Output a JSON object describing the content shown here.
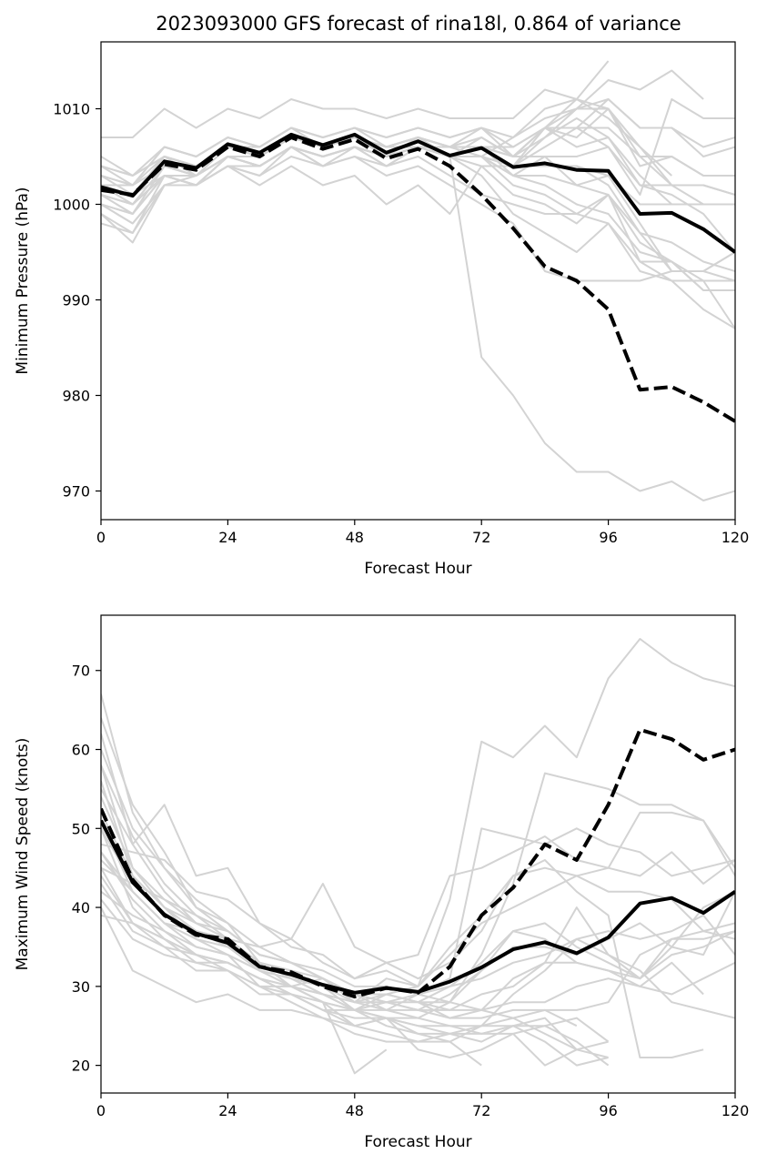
{
  "figure": {
    "title": "2023093000 GFS forecast of rina18l, 0.864 of variance"
  },
  "colors": {
    "ensemble": "#d3d3d3",
    "main": "#000000"
  },
  "chart_data": [
    {
      "type": "line",
      "title": "2023093000 GFS forecast of rina18l, 0.864 of variance",
      "xlabel": "Forecast Hour",
      "ylabel": "Minimum Pressure (hPa)",
      "xlim": [
        0,
        120
      ],
      "ylim": [
        967,
        1017
      ],
      "xticks": [
        0,
        24,
        48,
        72,
        96,
        120
      ],
      "yticks": [
        970,
        980,
        990,
        1000,
        1010
      ],
      "grid": false,
      "x": [
        0,
        6,
        12,
        18,
        24,
        30,
        36,
        42,
        48,
        54,
        60,
        66,
        72,
        78,
        84,
        90,
        96,
        102,
        108,
        114,
        120
      ],
      "series": [
        {
          "style": "solid",
          "values": [
            1001.8,
            1000.9,
            1004.5,
            1003.8,
            1006.3,
            1005.4,
            1007.3,
            1006.2,
            1007.3,
            1005.4,
            1006.6,
            1005.1,
            1005.9,
            1003.9,
            1004.3,
            1003.6,
            1003.5,
            999.0,
            999.1,
            997.4,
            995.0
          ]
        },
        {
          "style": "dashed",
          "values": [
            1001.5,
            1001.0,
            1004.2,
            1003.6,
            1006.0,
            1005.0,
            1007.0,
            1005.8,
            1006.8,
            1004.8,
            1005.8,
            1004.0,
            1001.0,
            997.5,
            993.5,
            992.0,
            989.0,
            980.6,
            980.9,
            979.3,
            977.3
          ]
        }
      ],
      "ensemble": [
        [
          1003,
          1001,
          1005,
          1003,
          1006,
          1005,
          1007,
          1006,
          1007,
          1005,
          1007,
          1005,
          1006,
          1004,
          1007,
          1010,
          1011,
          1008,
          1008,
          1005,
          1006
        ],
        [
          1005,
          1003,
          1005,
          1004,
          1006,
          1006,
          1008,
          1007,
          1008,
          1006,
          1007,
          1006,
          1007,
          1005,
          1008,
          1011,
          1015
        ],
        [
          1000,
          999,
          1004,
          1004,
          1006,
          1005,
          1007,
          1006,
          1007,
          1006,
          1006,
          1006,
          1005,
          1007,
          1009,
          1010,
          1013,
          1012,
          1014,
          1011
        ],
        [
          1002,
          1001,
          1003,
          1003,
          1005,
          1004,
          1006,
          1005,
          1006,
          1005,
          1006,
          1005,
          1006,
          1006,
          1008,
          1010,
          1010,
          1004,
          1005,
          1003
        ],
        [
          1004,
          1003,
          1006,
          1005,
          1007,
          1006,
          1008,
          1007,
          1008,
          1007,
          1008,
          1007,
          1008,
          1007,
          1010,
          1011,
          1010,
          1006,
          1002,
          1002,
          1001
        ],
        [
          999,
          997,
          1003,
          1002,
          1005,
          1004,
          1006,
          1005,
          1006,
          1005,
          1006,
          1005,
          1006,
          1005,
          1008,
          1008,
          1011,
          1008,
          1008,
          1006,
          1007
        ],
        [
          1001,
          999,
          1003,
          1002,
          1005,
          1004,
          1006,
          1005,
          1006,
          1004,
          1006,
          1005,
          1007,
          1005,
          1007,
          1009,
          1007,
          1003,
          1000,
          1000,
          1000
        ],
        [
          1000,
          998,
          1002,
          1003,
          1005,
          1005,
          1007,
          1006,
          1007,
          1006,
          1007,
          1006,
          1006,
          1004,
          1006,
          1008,
          1006,
          1001,
          1011,
          1009,
          1009
        ],
        [
          1002,
          1002,
          1006,
          1005,
          1007,
          1006,
          1008,
          1006,
          1007,
          1006,
          1007,
          1006,
          1006,
          1003,
          1003,
          1002,
          1003,
          1000,
          1000,
          1000,
          1000
        ],
        [
          1004,
          1003,
          1005,
          1004,
          1006,
          1005,
          1007,
          1006,
          1007,
          1006,
          1007,
          1006,
          1008,
          1005,
          1005,
          1005,
          1006,
          1002,
          1001,
          999,
          995
        ],
        [
          1001,
          1000,
          1003,
          1003,
          1005,
          1004,
          1006,
          1005,
          1006,
          1005,
          1006,
          1005,
          1005,
          1002,
          1001,
          999,
          1001,
          996,
          994,
          992,
          987
        ],
        [
          998,
          997,
          1002,
          1002,
          1004,
          1004,
          1006,
          1005,
          1006,
          1005,
          1006,
          1005,
          1005,
          1003,
          1002,
          1000,
          999,
          995,
          994,
          991,
          991
        ],
        [
          1000,
          999,
          1003,
          1002,
          1005,
          1004,
          1006,
          1005,
          1006,
          1005,
          1006,
          1005,
          1004,
          1001,
          1000,
          998,
          1001,
          997,
          993,
          993,
          995
        ],
        [
          1000,
          998,
          1002,
          1002,
          1005,
          1004,
          1006,
          1005,
          1006,
          1005,
          1006,
          1005,
          1003,
          999,
          997,
          995,
          998,
          994,
          992,
          989,
          987
        ],
        [
          1003,
          1002,
          1005,
          1004,
          1006,
          1005,
          1007,
          1006,
          1007,
          1005,
          1006,
          1005,
          1005,
          1004,
          1004,
          1004,
          1003,
          998,
          993,
          993,
          992
        ],
        [
          1001,
          999,
          1004,
          1003,
          1005,
          1005,
          1007,
          1006,
          1007,
          1006,
          1007,
          1006,
          1005,
          1003,
          1005,
          1002,
          1001,
          994,
          994,
          991,
          991
        ],
        [
          1002,
          1000,
          1004,
          1003,
          1005,
          1004,
          1006,
          1004,
          1005,
          1003,
          1004,
          1002,
          1000,
          998,
          993,
          992,
          992,
          992,
          993,
          993,
          995
        ],
        [
          1004,
          1002,
          1006,
          1005,
          1007,
          1006,
          1008,
          1007,
          1008,
          1007,
          1008,
          1007,
          1008,
          1006,
          1008,
          1008,
          1008,
          1005,
          1005,
          1003,
          1003
        ],
        [
          1007,
          1007,
          1010,
          1008,
          1010,
          1009,
          1011,
          1010,
          1010,
          1009,
          1010,
          1009,
          1009,
          1009,
          1012,
          1011,
          1009,
          1006,
          1003
        ],
        [
          1002,
          1000,
          1003,
          1002,
          1004,
          1003,
          1005,
          1004,
          1005,
          1004,
          1005,
          1003,
          1001,
          1000,
          999,
          999,
          998,
          993,
          992,
          992,
          992
        ],
        [
          999,
          996,
          1002,
          1002,
          1004,
          1003,
          1006,
          1005,
          1006,
          1005,
          1006,
          1005,
          1005,
          1004,
          1004,
          1004,
          1002,
          997,
          996,
          994,
          993
        ],
        [
          1001,
          1000,
          1004,
          1003,
          1005,
          1004,
          1006,
          1005,
          1006,
          1005,
          1006,
          1005,
          984,
          980,
          975,
          972,
          972,
          970,
          971,
          969,
          970
        ],
        [
          1003,
          1002,
          1004,
          1003,
          1005,
          1004,
          1006,
          1004,
          1006,
          1004,
          1006,
          1005,
          1006,
          1005,
          1008,
          1007,
          1010,
          1005,
          1002,
          1000
        ],
        [
          1001,
          1000,
          1003,
          1002,
          1004,
          1002,
          1004,
          1002,
          1003,
          1000,
          1002,
          999,
          1004,
          1004,
          1008,
          1006,
          1007,
          1002,
          1002,
          1002,
          1001
        ]
      ]
    },
    {
      "type": "line",
      "title": "",
      "xlabel": "Forecast Hour",
      "ylabel": "Maximum Wind Speed (knots)",
      "xlim": [
        0,
        120
      ],
      "ylim": [
        16.5,
        77
      ],
      "xticks": [
        0,
        24,
        48,
        72,
        96,
        120
      ],
      "yticks": [
        20,
        30,
        40,
        50,
        60,
        70
      ],
      "grid": false,
      "x": [
        0,
        6,
        12,
        18,
        24,
        30,
        36,
        42,
        48,
        54,
        60,
        66,
        72,
        78,
        84,
        90,
        96,
        102,
        108,
        114,
        120
      ],
      "series": [
        {
          "style": "solid",
          "values": [
            51,
            43.2,
            39.1,
            36.7,
            35.5,
            32.5,
            31.5,
            30.2,
            29.2,
            29.8,
            29.3,
            30.6,
            32.4,
            34.7,
            35.6,
            34.2,
            36.2,
            40.5,
            41.2,
            39.3,
            42.0
          ]
        },
        {
          "style": "dashed",
          "values": [
            52.5,
            43.5,
            39.0,
            36.5,
            36.0,
            32.5,
            31.8,
            30.0,
            28.7,
            29.8,
            29.2,
            32.5,
            39.0,
            42.5,
            48.0,
            46.0,
            53.0,
            62.5,
            61.3,
            58.7,
            60.0
          ]
        }
      ],
      "ensemble": [
        [
          67,
          52,
          45,
          41,
          38,
          33,
          30,
          29,
          27,
          29,
          30,
          41,
          61,
          59,
          63,
          59,
          69,
          74,
          71,
          69,
          68
        ],
        [
          62,
          48,
          42,
          38,
          36,
          33,
          31,
          29,
          28,
          27,
          26,
          28,
          34,
          43,
          57,
          56,
          55,
          53,
          53,
          51,
          45
        ],
        [
          58,
          45,
          40,
          38,
          37,
          34,
          33,
          31,
          29,
          27,
          29,
          31,
          50,
          49,
          48,
          50,
          48,
          47,
          44,
          45,
          46
        ],
        [
          55,
          48,
          53,
          44,
          45,
          38,
          36,
          43,
          35,
          33,
          34,
          44,
          45,
          47,
          49,
          46,
          45,
          44,
          47,
          43,
          46
        ],
        [
          50,
          43,
          39,
          37,
          36,
          35,
          36,
          33,
          31,
          33,
          31,
          33,
          37,
          44,
          45,
          44,
          45,
          52,
          52,
          51,
          44
        ],
        [
          48,
          47,
          46,
          42,
          41,
          38,
          35,
          34,
          31,
          32,
          30,
          34,
          38,
          40,
          42,
          44,
          42,
          42,
          41,
          37,
          38
        ],
        [
          46,
          42,
          38,
          37,
          36,
          33,
          32,
          31,
          29,
          29,
          28,
          28,
          32,
          35,
          35,
          34,
          36,
          38,
          35,
          40,
          42
        ],
        [
          45,
          43,
          41,
          39,
          37,
          34,
          33,
          32,
          30,
          30,
          29,
          30,
          31,
          33,
          34,
          36,
          37,
          36,
          37,
          39,
          34
        ],
        [
          44,
          38,
          35,
          32,
          32,
          30,
          30,
          31,
          29,
          28,
          29,
          28,
          27,
          31,
          33,
          40,
          34,
          31,
          34,
          35,
          37
        ],
        [
          47,
          41,
          37,
          34,
          33,
          31,
          30,
          28,
          27,
          27,
          27,
          27,
          29,
          30,
          33,
          33,
          32,
          31,
          36,
          37,
          36
        ],
        [
          43,
          37,
          35,
          34,
          32,
          29,
          29,
          27,
          27,
          28,
          27,
          26,
          26,
          27,
          27,
          27,
          28,
          34,
          36,
          36,
          37
        ],
        [
          52,
          44,
          40,
          36,
          34,
          32,
          30,
          29,
          28,
          29,
          28,
          26,
          27,
          28,
          28,
          30,
          31,
          30,
          33,
          29
        ],
        [
          41,
          36,
          34,
          33,
          33,
          31,
          29,
          27,
          26,
          26,
          25,
          25,
          25,
          25,
          26,
          22,
          23
        ],
        [
          45,
          38,
          36,
          34,
          33,
          31,
          30,
          28,
          27,
          26,
          26,
          25,
          24,
          24,
          25,
          23,
          20
        ],
        [
          60,
          50,
          45,
          40,
          38,
          35,
          33,
          31,
          29,
          28,
          28,
          27,
          27,
          26,
          24,
          22,
          21
        ],
        [
          54,
          45,
          41,
          38,
          36,
          32,
          30,
          28,
          25,
          24,
          23,
          24,
          23,
          25,
          23,
          20,
          21
        ],
        [
          40,
          32,
          30,
          28,
          29,
          27,
          27,
          26,
          25,
          26,
          24,
          23,
          20
        ],
        [
          50,
          40,
          36,
          33,
          32,
          30,
          29,
          27,
          25,
          26,
          22,
          21,
          22,
          24,
          20,
          22
        ],
        [
          56,
          44,
          40,
          37,
          35,
          32,
          31,
          29,
          27,
          25,
          24,
          24,
          25,
          26,
          27,
          25
        ],
        [
          39,
          38,
          36,
          34,
          33,
          31,
          29,
          28,
          19,
          22
        ],
        [
          42,
          39,
          37,
          35,
          34,
          32,
          31,
          30,
          27,
          26,
          25,
          24,
          24,
          25,
          25,
          26,
          23
        ],
        [
          64,
          53,
          47,
          40,
          37,
          34,
          33,
          31,
          28,
          28,
          27,
          29,
          32,
          37,
          38,
          35,
          33,
          31,
          35,
          34,
          42
        ],
        [
          51,
          42,
          38,
          36,
          35,
          33,
          32,
          30,
          28,
          31,
          30,
          35,
          39,
          44,
          46,
          42,
          39,
          21,
          21,
          22
        ],
        [
          47,
          42,
          38,
          35,
          34,
          30,
          28,
          26,
          24,
          23,
          23,
          23,
          25,
          29,
          32,
          36,
          34,
          32,
          28,
          27,
          26
        ],
        [
          58,
          49,
          43,
          39,
          36,
          33,
          32,
          30,
          29,
          29,
          28,
          30,
          33,
          37,
          36,
          33,
          32,
          30,
          29,
          31,
          33
        ]
      ]
    }
  ]
}
